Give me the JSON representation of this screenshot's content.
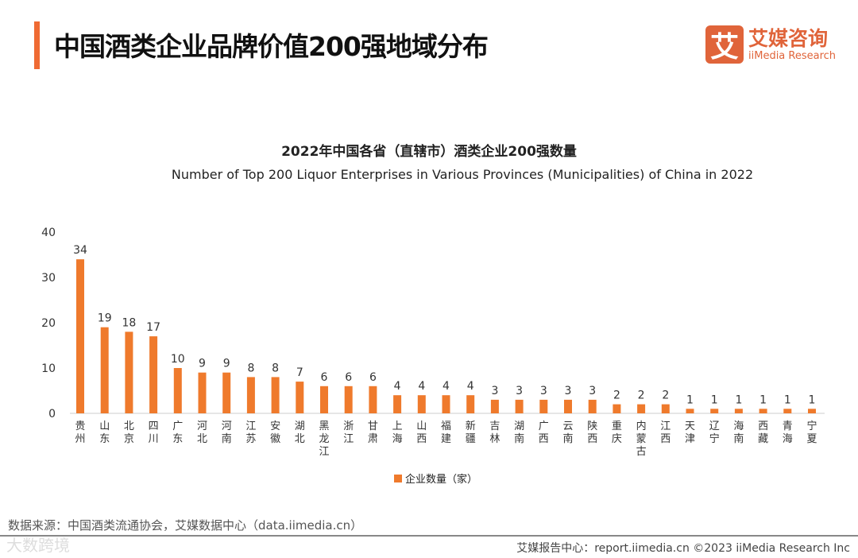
{
  "header": {
    "title": "中国酒类企业品牌价值200强地域分布",
    "logo_mark": "艾",
    "logo_cn": "艾媒咨询",
    "logo_en": "iiMedia Research"
  },
  "chart_data": {
    "type": "bar",
    "title": "2022年中国各省（直辖市）酒类企业200强数量",
    "subtitle": "Number of Top 200 Liquor Enterprises in Various Provinces (Municipalities) of China in 2022",
    "categories": [
      "贵州",
      "山东",
      "北京",
      "四川",
      "广东",
      "河北",
      "河南",
      "江苏",
      "安徽",
      "湖北",
      "黑龙江",
      "浙江",
      "甘肃",
      "上海",
      "山西",
      "福建",
      "新疆",
      "吉林",
      "湖南",
      "广西",
      "云南",
      "陕西",
      "重庆",
      "内蒙古",
      "江西",
      "天津",
      "辽宁",
      "海南",
      "西藏",
      "青海",
      "宁夏"
    ],
    "values": [
      34,
      19,
      18,
      17,
      10,
      9,
      9,
      8,
      8,
      7,
      6,
      6,
      6,
      4,
      4,
      4,
      4,
      3,
      3,
      3,
      3,
      3,
      2,
      2,
      2,
      1,
      1,
      1,
      1,
      1,
      1
    ],
    "series_name": "企业数量（家）",
    "ylim": [
      0,
      40
    ],
    "yticks": [
      0,
      10,
      20,
      30,
      40
    ],
    "color": "#ef7a2c",
    "legend": "bottom"
  },
  "footer": {
    "source": "数据来源：中国酒类流通协会，艾媒数据中心（data.iimedia.cn）",
    "report": "艾媒报告中心：report.iimedia.cn  ©2023  iiMedia Research  Inc",
    "watermark": "大数跨境"
  }
}
